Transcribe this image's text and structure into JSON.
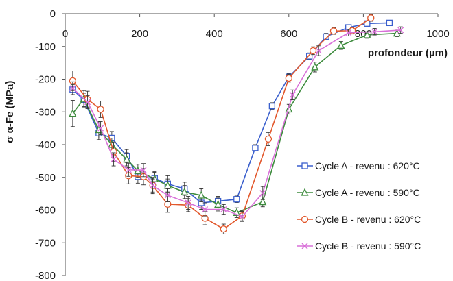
{
  "chart_data": {
    "type": "line",
    "xlabel": "profondeur (µm)",
    "ylabel": "σ α-Fe (MPa)",
    "xlim": [
      0,
      1000
    ],
    "ylim": [
      -800,
      0
    ],
    "x_ticks": [
      "0",
      "200",
      "400",
      "600",
      "800",
      "1000"
    ],
    "y_ticks": [
      "0",
      "-100",
      "-200",
      "-300",
      "-400",
      "-500",
      "-600",
      "-700",
      "-800"
    ],
    "grid": false,
    "legend_position": "right",
    "series": [
      {
        "name": "Cycle A - revenu : 620°C",
        "color": "#3a5fcd",
        "marker": "square",
        "points": [
          [
            20,
            -232,
            15
          ],
          [
            50,
            -263,
            20
          ],
          [
            90,
            -365,
            20
          ],
          [
            125,
            -380,
            20
          ],
          [
            165,
            -435,
            20
          ],
          [
            195,
            -498,
            20
          ],
          [
            240,
            -503,
            20
          ],
          [
            275,
            -520,
            25
          ],
          [
            320,
            -535,
            20
          ],
          [
            365,
            -578,
            20
          ],
          [
            410,
            -573,
            15
          ],
          [
            460,
            -567,
            10
          ],
          [
            510,
            -410,
            10
          ],
          [
            555,
            -282,
            10
          ],
          [
            600,
            -193,
            10
          ],
          [
            655,
            -130,
            10
          ],
          [
            700,
            -70,
            10
          ],
          [
            760,
            -42,
            8
          ],
          [
            810,
            -30,
            8
          ],
          [
            870,
            -28,
            8
          ]
        ]
      },
      {
        "name": "Cycle A - revenu : 590°C",
        "color": "#3d8b3d",
        "marker": "triangle",
        "points": [
          [
            20,
            -305,
            40
          ],
          [
            50,
            -260,
            25
          ],
          [
            90,
            -355,
            25
          ],
          [
            125,
            -400,
            20
          ],
          [
            165,
            -445,
            20
          ],
          [
            195,
            -480,
            20
          ],
          [
            240,
            -505,
            20
          ],
          [
            275,
            -525,
            20
          ],
          [
            320,
            -545,
            20
          ],
          [
            365,
            -555,
            20
          ],
          [
            410,
            -583,
            20
          ],
          [
            460,
            -608,
            15
          ],
          [
            530,
            -575,
            15
          ],
          [
            600,
            -292,
            15
          ],
          [
            670,
            -163,
            15
          ],
          [
            740,
            -97,
            12
          ],
          [
            810,
            -65,
            10
          ],
          [
            890,
            -60,
            10
          ]
        ]
      },
      {
        "name": "Cycle B - revenu : 620°C",
        "color": "#e2572b",
        "marker": "circle",
        "points": [
          [
            20,
            -205,
            30
          ],
          [
            60,
            -262,
            25
          ],
          [
            95,
            -292,
            25
          ],
          [
            130,
            -422,
            30
          ],
          [
            170,
            -495,
            25
          ],
          [
            210,
            -498,
            25
          ],
          [
            235,
            -525,
            25
          ],
          [
            275,
            -582,
            25
          ],
          [
            330,
            -585,
            20
          ],
          [
            375,
            -625,
            20
          ],
          [
            425,
            -658,
            15
          ],
          [
            475,
            -618,
            15
          ],
          [
            545,
            -383,
            20
          ],
          [
            600,
            -197,
            12
          ],
          [
            665,
            -113,
            12
          ],
          [
            720,
            -53,
            10
          ],
          [
            770,
            -52,
            10
          ],
          [
            820,
            -13,
            10
          ]
        ]
      },
      {
        "name": "Cycle B - revenu : 590°C",
        "color": "#d870d8",
        "marker": "x",
        "points": [
          [
            20,
            -228,
            20
          ],
          [
            60,
            -270,
            20
          ],
          [
            95,
            -350,
            20
          ],
          [
            130,
            -445,
            20
          ],
          [
            170,
            -477,
            20
          ],
          [
            210,
            -478,
            20
          ],
          [
            235,
            -525,
            20
          ],
          [
            275,
            -555,
            20
          ],
          [
            330,
            -578,
            20
          ],
          [
            375,
            -598,
            20
          ],
          [
            425,
            -598,
            15
          ],
          [
            475,
            -620,
            15
          ],
          [
            530,
            -548,
            20
          ],
          [
            610,
            -248,
            15
          ],
          [
            680,
            -113,
            15
          ],
          [
            760,
            -58,
            10
          ],
          [
            830,
            -55,
            10
          ],
          [
            900,
            -50,
            10
          ]
        ]
      }
    ]
  }
}
